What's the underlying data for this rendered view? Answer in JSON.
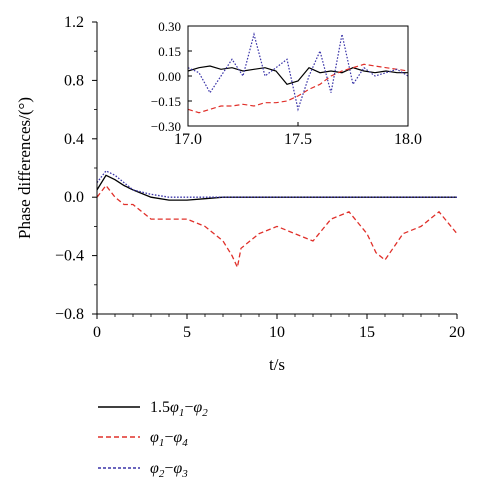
{
  "chart_data": [
    {
      "type": "line",
      "title": "",
      "xlabel": "t/s",
      "ylabel": "Phase differences/(°)",
      "xlim": [
        0,
        20
      ],
      "ylim": [
        -0.8,
        1.2
      ],
      "x_ticks": [
        0,
        5,
        10,
        15,
        20
      ],
      "y_ticks": [
        -0.8,
        -0.4,
        0.0,
        0.4,
        0.8,
        1.2
      ],
      "x_tick_labels": [
        "0",
        "5",
        "10",
        "15",
        "20"
      ],
      "y_tick_labels": [
        "−0.8",
        "−0.4",
        "0.0",
        "0.4",
        "0.8",
        "1.2"
      ],
      "grid": false,
      "legend_position": "bottom",
      "series": [
        {
          "name_parts": [
            "1.5",
            "φ",
            "1",
            "−",
            "φ",
            "2"
          ],
          "color": "#000000",
          "dash": "solid",
          "x": [
            0,
            0.5,
            1,
            1.5,
            2,
            3,
            4,
            5,
            6,
            7,
            8,
            9,
            10,
            11,
            12,
            13,
            14,
            15,
            16,
            17,
            18,
            19,
            20
          ],
          "y": [
            0.05,
            0.15,
            0.12,
            0.08,
            0.05,
            0.0,
            -0.02,
            -0.02,
            -0.01,
            0.0,
            0.0,
            0.0,
            0.0,
            0.0,
            0.0,
            0.0,
            0.0,
            0.0,
            0.0,
            0.0,
            0.0,
            0.0,
            0.0
          ]
        },
        {
          "name_parts": [
            "φ",
            "1",
            "−",
            "φ",
            "4"
          ],
          "color": "#e0302a",
          "dash": "dashed",
          "x": [
            0,
            0.5,
            1,
            1.5,
            2,
            3,
            4,
            5,
            6,
            7,
            7.5,
            7.8,
            8,
            9,
            10,
            11,
            12,
            13,
            14,
            15,
            15.5,
            16,
            17,
            18,
            19,
            20
          ],
          "y": [
            0.0,
            0.08,
            0.0,
            -0.05,
            -0.05,
            -0.15,
            -0.15,
            -0.15,
            -0.2,
            -0.3,
            -0.4,
            -0.48,
            -0.35,
            -0.25,
            -0.2,
            -0.25,
            -0.3,
            -0.15,
            -0.1,
            -0.25,
            -0.38,
            -0.43,
            -0.25,
            -0.2,
            -0.1,
            -0.25
          ]
        },
        {
          "name_parts": [
            "φ",
            "2",
            "−",
            "φ",
            "3"
          ],
          "color": "#3a34a8",
          "dash": "dotted",
          "x": [
            0,
            0.5,
            1,
            1.5,
            2,
            3,
            4,
            5,
            6,
            7,
            8,
            9,
            10,
            11,
            12,
            13,
            14,
            15,
            16,
            17,
            18,
            19,
            20
          ],
          "y": [
            0.1,
            0.18,
            0.15,
            0.1,
            0.05,
            0.02,
            0.0,
            0.0,
            0.0,
            0.0,
            0.0,
            0.0,
            0.0,
            0.0,
            0.0,
            0.0,
            0.0,
            0.0,
            0.0,
            0.0,
            0.0,
            0.0,
            0.0
          ]
        }
      ]
    },
    {
      "type": "line",
      "title": "",
      "xlim": [
        17.0,
        18.0
      ],
      "ylim": [
        -0.3,
        0.3
      ],
      "x_ticks": [
        17.0,
        17.5,
        18.0
      ],
      "y_ticks": [
        -0.3,
        -0.15,
        0.0,
        0.15,
        0.3
      ],
      "x_tick_labels": [
        "17.0",
        "17.5",
        "18.0"
      ],
      "y_tick_labels": [
        "−0.30",
        "−0.15",
        "0.00",
        "0.15",
        "0.30"
      ],
      "grid": false,
      "series": [
        {
          "color": "#000000",
          "dash": "solid",
          "x": [
            17.0,
            17.05,
            17.1,
            17.15,
            17.2,
            17.25,
            17.3,
            17.35,
            17.4,
            17.45,
            17.5,
            17.55,
            17.6,
            17.65,
            17.7,
            17.75,
            17.8,
            17.85,
            17.9,
            17.95,
            18.0
          ],
          "y": [
            0.03,
            0.05,
            0.06,
            0.04,
            0.05,
            0.03,
            0.04,
            0.05,
            0.03,
            -0.05,
            -0.03,
            0.05,
            0.02,
            0.03,
            0.02,
            0.05,
            0.03,
            0.02,
            0.03,
            0.02,
            0.02
          ]
        },
        {
          "color": "#e0302a",
          "dash": "dashed",
          "x": [
            17.0,
            17.05,
            17.1,
            17.15,
            17.2,
            17.25,
            17.3,
            17.35,
            17.4,
            17.45,
            17.5,
            17.55,
            17.6,
            17.65,
            17.7,
            17.75,
            17.8,
            17.85,
            17.9,
            17.95,
            18.0
          ],
          "y": [
            -0.2,
            -0.22,
            -0.2,
            -0.18,
            -0.18,
            -0.17,
            -0.18,
            -0.16,
            -0.16,
            -0.15,
            -0.12,
            -0.08,
            -0.05,
            0.0,
            0.03,
            0.05,
            0.07,
            0.06,
            0.05,
            0.04,
            0.03
          ]
        },
        {
          "color": "#3a34a8",
          "dash": "dotted",
          "x": [
            17.0,
            17.05,
            17.1,
            17.15,
            17.2,
            17.25,
            17.3,
            17.35,
            17.4,
            17.45,
            17.5,
            17.55,
            17.6,
            17.65,
            17.7,
            17.75,
            17.8,
            17.85,
            17.9,
            17.95,
            18.0
          ],
          "y": [
            0.05,
            0.02,
            -0.1,
            0.0,
            0.1,
            0.0,
            0.25,
            0.0,
            0.05,
            0.1,
            -0.2,
            0.0,
            0.15,
            -0.1,
            0.25,
            -0.05,
            0.05,
            0.0,
            0.02,
            0.04,
            0.0
          ]
        }
      ]
    }
  ]
}
